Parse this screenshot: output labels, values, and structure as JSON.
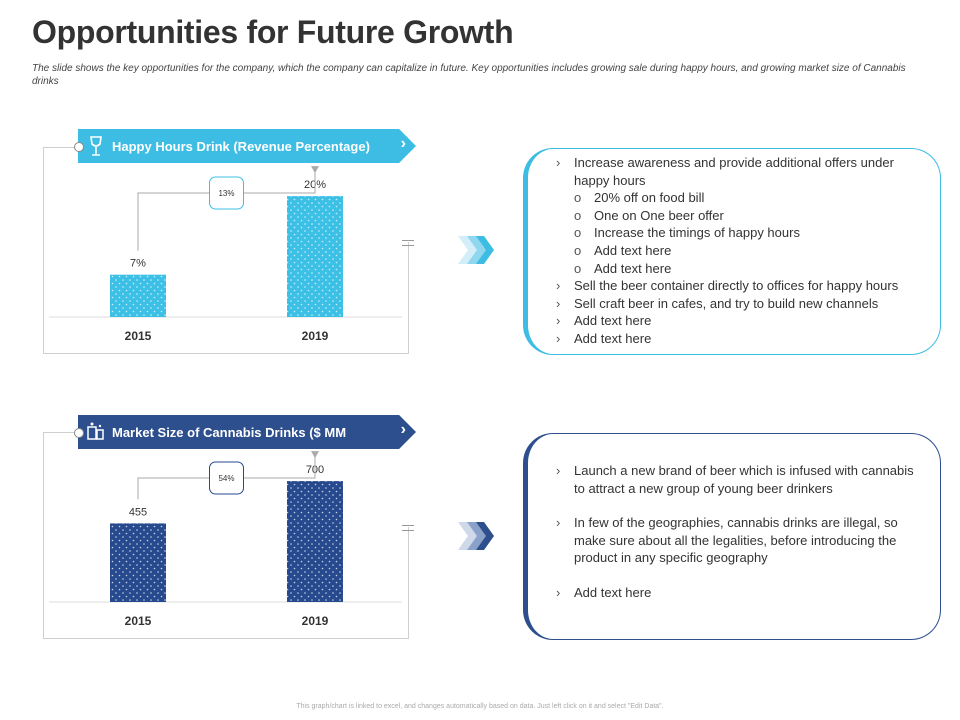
{
  "title": "Opportunities for Future Growth",
  "subtitle": "The slide shows the key opportunities for the company, which the company can capitalize in future. Key opportunities includes growing sale during happy hours, and growing market size of Cannabis drinks",
  "footer": "This graph/chart is linked to excel, and changes automatically based on data. Just left click on it and select \"Edit Data\".",
  "colors": {
    "light_accent": "#3dbde3",
    "dark_accent": "#2d4f8e",
    "bar_light": "#3cc0e6",
    "bar_dark": "#274a8f"
  },
  "chart_data": [
    {
      "type": "bar",
      "title": "Happy Hours Drink (Revenue Percentage)",
      "categories": [
        "2015",
        "2019"
      ],
      "values": [
        7,
        20
      ],
      "data_labels": [
        "7%",
        "20%"
      ],
      "change_label": "13%",
      "ylim": [
        0,
        22
      ]
    },
    {
      "type": "bar",
      "title": "Market Size of Cannabis Drinks ($ MM",
      "categories": [
        "2015",
        "2019"
      ],
      "values": [
        455,
        700
      ],
      "data_labels": [
        "455",
        "700"
      ],
      "change_label": "54%",
      "ylim": [
        0,
        770
      ]
    }
  ],
  "panel1": {
    "items": [
      {
        "text": "Increase awareness and provide additional offers under happy hours",
        "sub": [
          "20% off on food bill",
          "One on One beer offer",
          "Increase the timings of happy hours",
          "Add text here",
          "Add text here"
        ]
      },
      {
        "text": "Sell the beer container directly to offices for happy hours",
        "sub": []
      },
      {
        "text": "Sell craft beer in cafes, and try to build new channels",
        "sub": []
      },
      {
        "text": "Add text here",
        "sub": []
      },
      {
        "text": "Add text here",
        "sub": []
      }
    ]
  },
  "panel2": {
    "items": [
      {
        "text": "Launch a new brand of beer which is infused with cannabis to attract a new group of young beer drinkers"
      },
      {
        "text": "In few of the geographies, cannabis drinks are illegal, so make sure about all the legalities, before introducing the product in any specific geography"
      },
      {
        "text": "Add text here"
      }
    ]
  }
}
